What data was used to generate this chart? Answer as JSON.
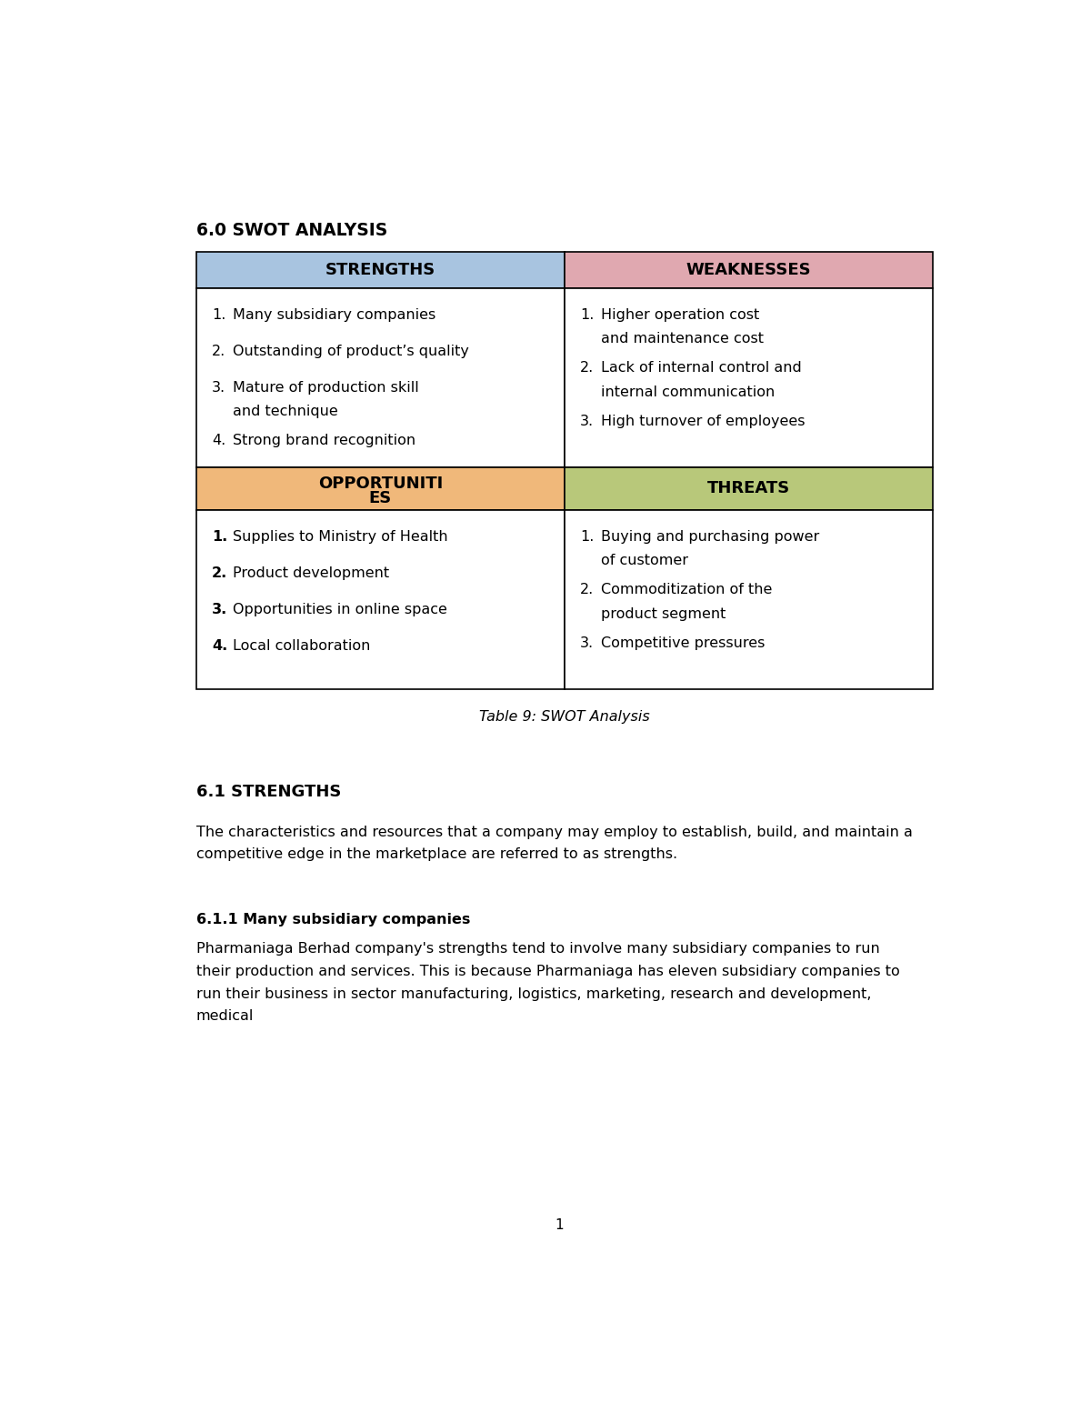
{
  "page_title": "6.0 SWOT ANALYSIS",
  "table_caption": "Table 9: SWOT Analysis",
  "strengths_header": "STRENGTHS",
  "weaknesses_header": "WEAKNESSES",
  "threats_header": "THREATS",
  "strengths_color": "#a8c4e0",
  "weaknesses_color": "#e0a8b0",
  "opportunities_color": "#f0b87a",
  "threats_color": "#b8c87a",
  "strengths_items": [
    "Many subsidiary companies",
    "Outstanding of product’s quality",
    "Mature of production skill\nand technique",
    "Strong brand recognition"
  ],
  "weaknesses_items": [
    "Higher operation cost\nand maintenance cost",
    "Lack of internal control and\ninternal communication",
    "High turnover of employees"
  ],
  "opportunities_items": [
    "Supplies to Ministry of Health",
    "Product development",
    "Opportunities in online space",
    "Local collaboration"
  ],
  "threats_items": [
    "Buying and purchasing power\nof customer",
    "Commoditization of the\nproduct segment",
    "Competitive pressures"
  ],
  "section_title": "6.1 STRENGTHS",
  "section_text": "The characteristics and resources that a company may employ to establish, build, and maintain a\ncompetitive edge in the marketplace are referred to as strengths.",
  "subsection_title": "6.1.1 Many subsidiary companies",
  "subsection_text": "Pharmaniaga Berhad company's strengths tend to involve many subsidiary companies to run\ntheir production and services. This is because Pharmaniaga has eleven subsidiary companies to\nrun their business in sector manufacturing, logistics, marketing, research and development,\nmedical",
  "page_number": "1",
  "bg_color": "#ffffff",
  "text_color": "#000000",
  "border_color": "#000000"
}
